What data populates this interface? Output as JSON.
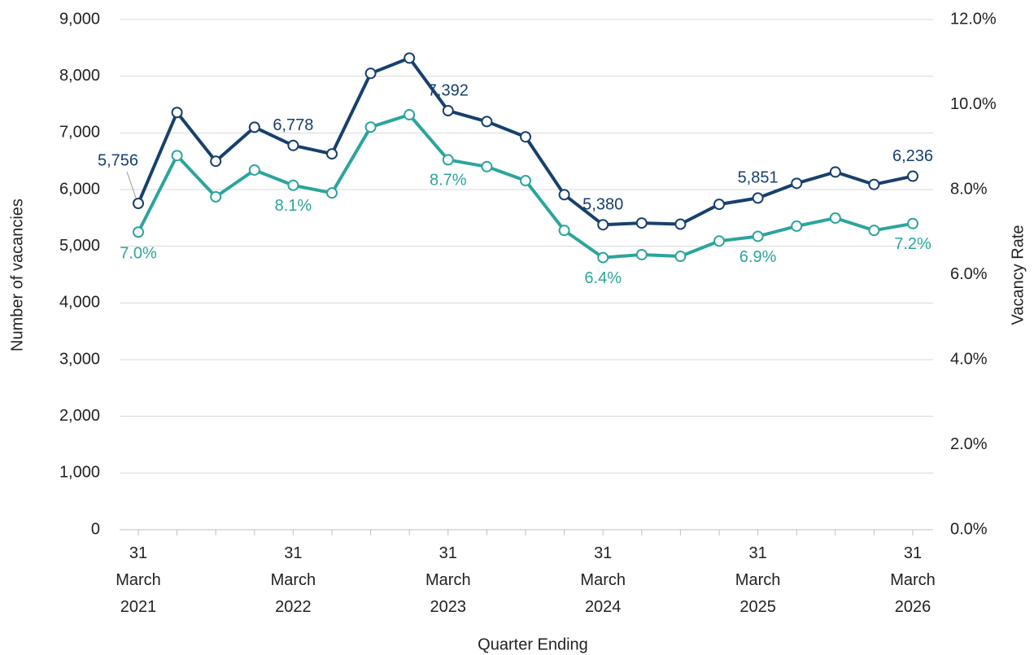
{
  "chart_data": {
    "type": "line",
    "categories": [
      "31 March 2021",
      null,
      null,
      null,
      "31 March 2022",
      null,
      null,
      null,
      "31 March 2023",
      null,
      null,
      null,
      "31 March 2024",
      null,
      null,
      null,
      "31 March 2025",
      null,
      null,
      null,
      "31 March 2026"
    ],
    "x_label": "Quarter Ending",
    "y_label": "Number of vacancies",
    "y2_label": "Vacancy Rate",
    "ylim": [
      0,
      9000
    ],
    "yticks": [
      0,
      {
        "value": 1000,
        "label": "1,000"
      },
      {
        "value": 2000,
        "label": "2,000"
      },
      {
        "value": 3000,
        "label": "3,000"
      },
      {
        "value": 4000,
        "label": "4,000"
      },
      {
        "value": 5000,
        "label": "5,000"
      },
      {
        "value": 6000,
        "label": "6,000"
      },
      {
        "value": 7000,
        "label": "7,000"
      },
      {
        "value": 8000,
        "label": "8,000"
      },
      {
        "value": 9000,
        "label": "9,000"
      }
    ],
    "y2lim": [
      0,
      12
    ],
    "y2ticks": [
      {
        "value": 0,
        "label": "0.0%"
      },
      {
        "value": 2,
        "label": "2.0%"
      },
      {
        "value": 4,
        "label": "4.0%"
      },
      {
        "value": 6,
        "label": "6.0%"
      },
      {
        "value": 8,
        "label": "8.0%"
      },
      {
        "value": 10,
        "label": "10.0%"
      },
      {
        "value": 12,
        "label": "12.0%"
      }
    ],
    "grid": true,
    "series": [
      {
        "name": "Number of vacancies",
        "color": "#17406d",
        "values": [
          5756,
          7360,
          6500,
          7100,
          6778,
          6630,
          8050,
          8320,
          7392,
          7200,
          6930,
          5910,
          5380,
          5410,
          5390,
          5740,
          5851,
          6110,
          6310,
          6090,
          6236
        ],
        "value_labels": [
          "5,756",
          null,
          null,
          null,
          "6,778",
          null,
          null,
          null,
          "7,392",
          null,
          null,
          null,
          "5,380",
          null,
          null,
          null,
          "5,851",
          null,
          null,
          null,
          "6,236"
        ]
      },
      {
        "name": "Vacancy Rate",
        "color": "#2ca59c",
        "axis": "y2",
        "values": [
          7.0,
          8.8,
          7.83,
          8.46,
          8.1,
          7.92,
          9.47,
          9.76,
          8.7,
          8.54,
          8.21,
          7.04,
          6.4,
          6.47,
          6.43,
          6.79,
          6.9,
          7.14,
          7.33,
          7.04,
          7.2
        ],
        "value_labels": [
          "7.0%",
          null,
          null,
          null,
          "8.1%",
          null,
          null,
          null,
          "8.7%",
          null,
          null,
          null,
          "6.4%",
          null,
          null,
          null,
          "6.9%",
          null,
          null,
          null,
          "7.2%"
        ]
      }
    ]
  }
}
